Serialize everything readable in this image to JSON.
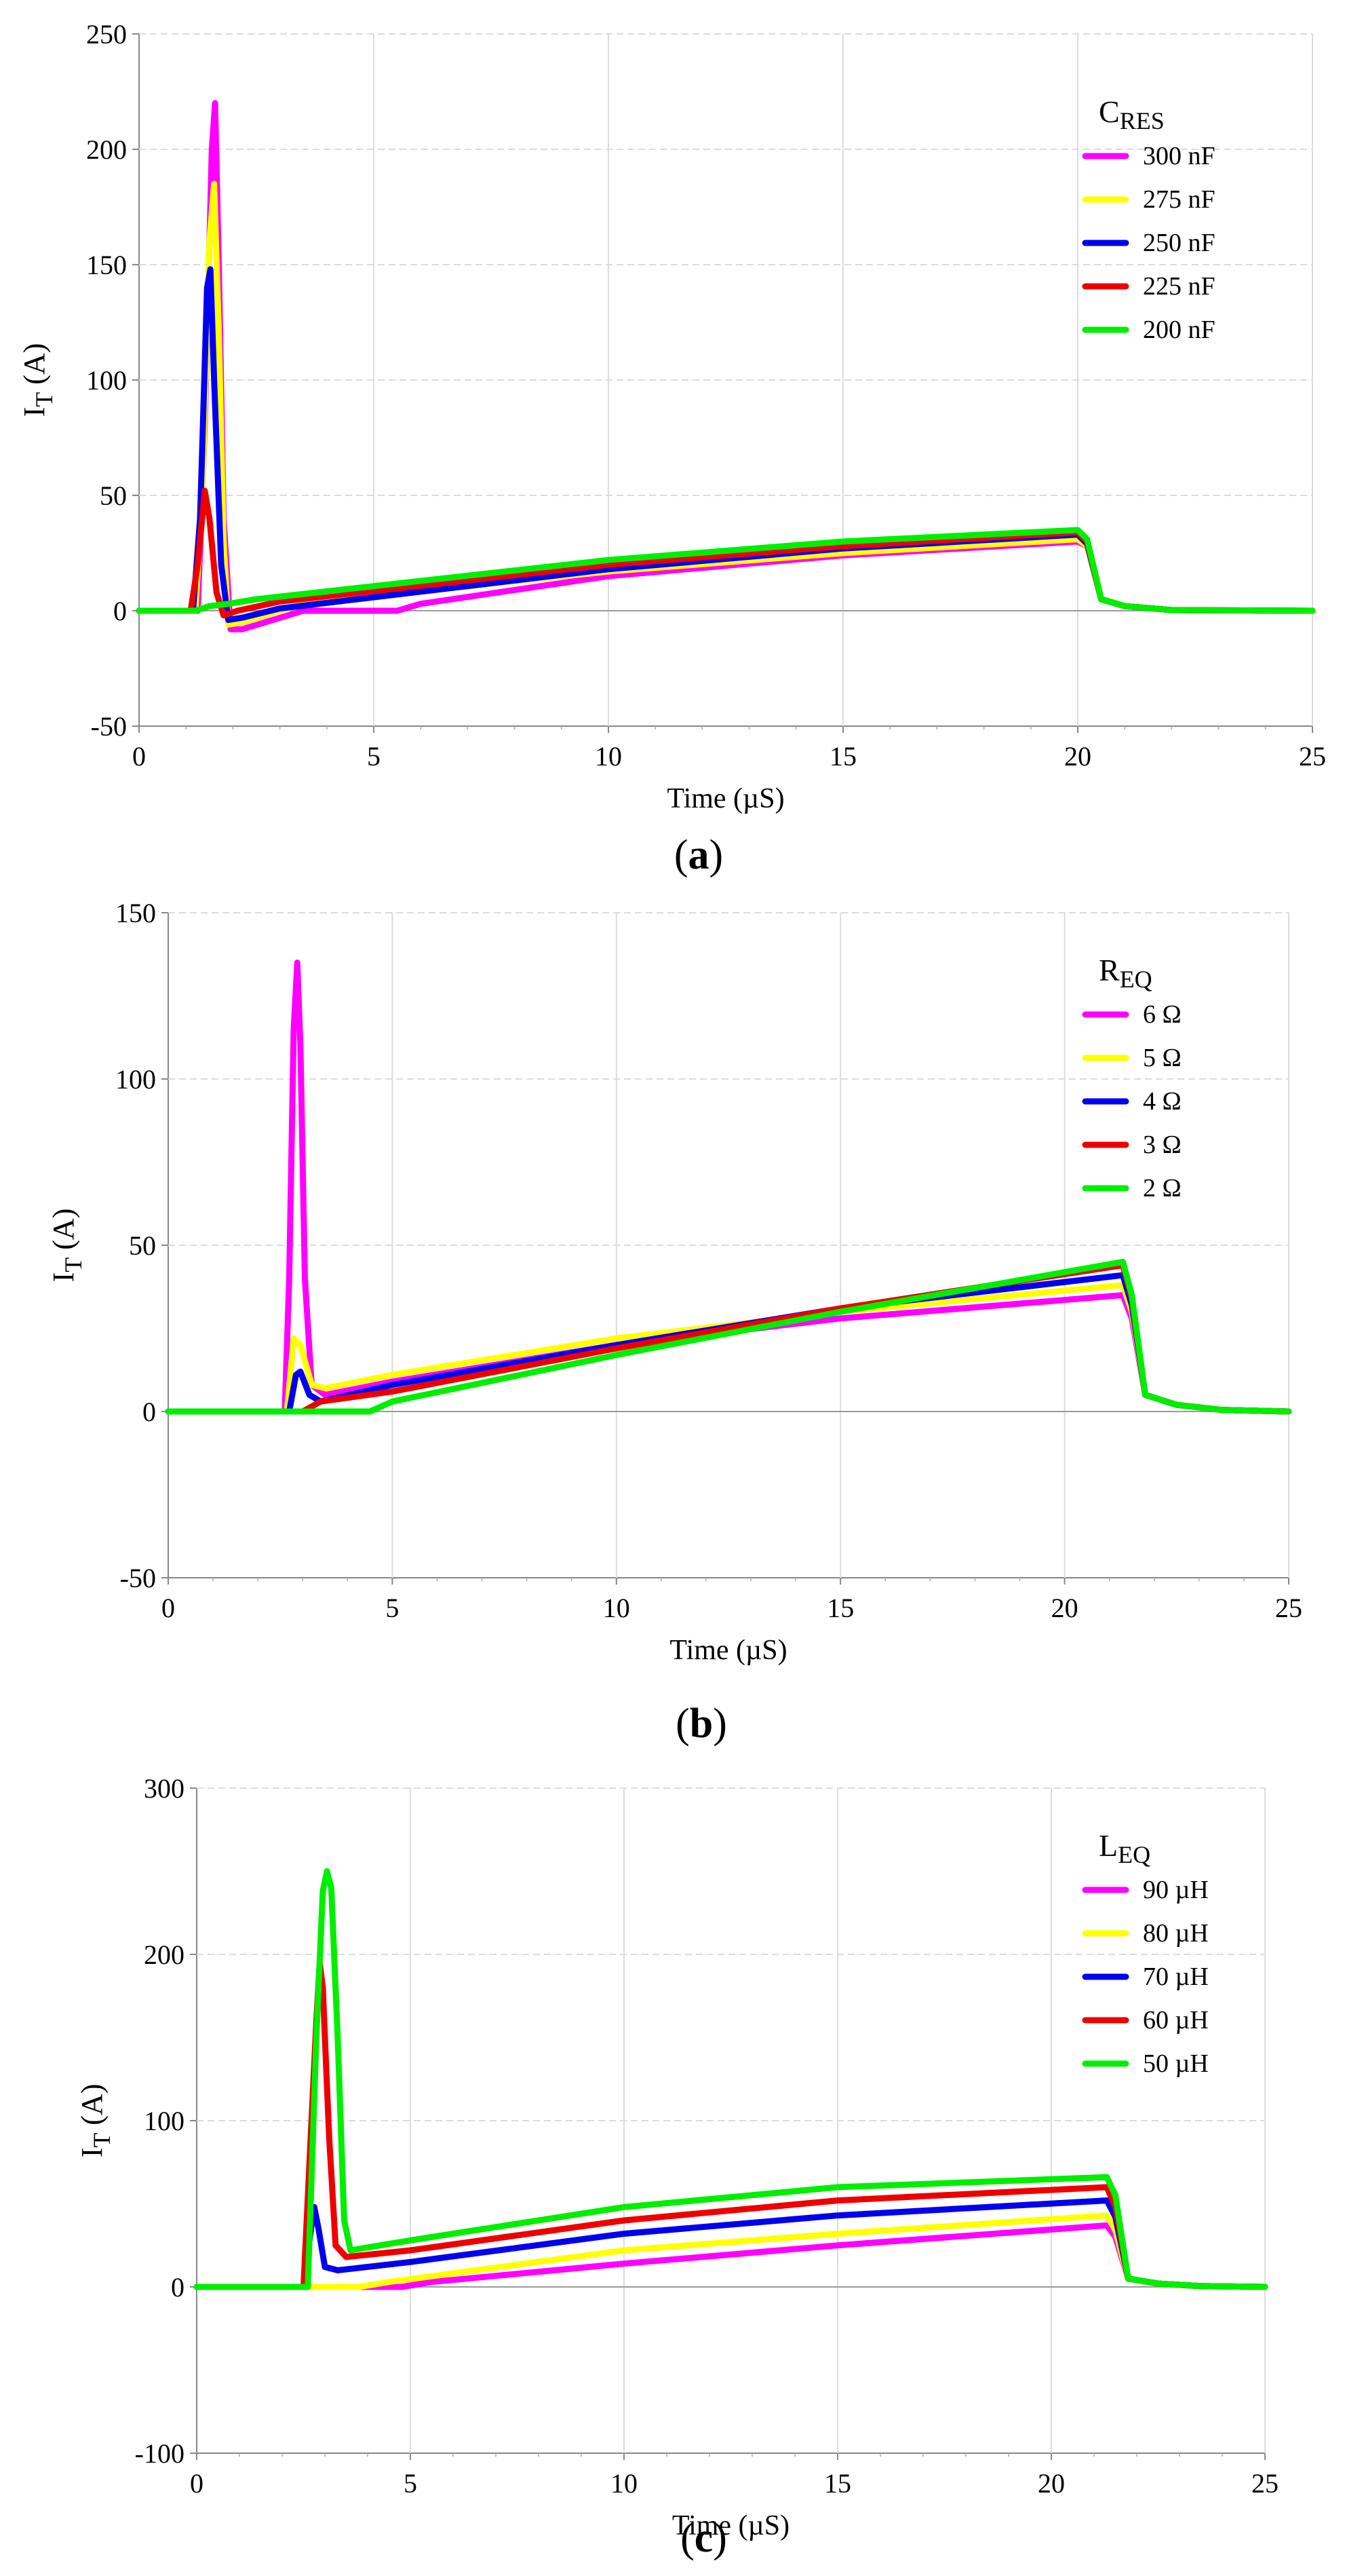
{
  "chart_data": [
    {
      "type": "line",
      "panel_label": "(a)",
      "panel_letter": "a",
      "xlabel": "Time (µS)",
      "ylabel_main": "I",
      "ylabel_sub": "T",
      "ylabel_tail": " (A)",
      "xlim": [
        0,
        25
      ],
      "ylim": [
        -50,
        250
      ],
      "xticks": [
        0,
        5,
        10,
        15,
        20,
        25
      ],
      "yticks": [
        -50,
        0,
        50,
        100,
        150,
        200,
        250
      ],
      "grid": true,
      "legend_title_main": "C",
      "legend_title_sub": "RES",
      "legend_position": "top-right",
      "series": [
        {
          "name": "300 nF",
          "color": "#ff00ff",
          "points": [
            [
              0,
              0
            ],
            [
              1.25,
              0
            ],
            [
              1.4,
              80
            ],
            [
              1.55,
              200
            ],
            [
              1.62,
              220
            ],
            [
              1.7,
              150
            ],
            [
              1.8,
              40
            ],
            [
              1.95,
              -8
            ],
            [
              2.2,
              -8
            ],
            [
              3.5,
              0
            ],
            [
              5.5,
              0
            ],
            [
              6,
              3
            ],
            [
              10,
              15
            ],
            [
              15,
              24
            ],
            [
              20,
              30
            ],
            [
              20.2,
              28
            ],
            [
              20.5,
              5
            ],
            [
              21,
              2
            ],
            [
              22,
              0.3
            ],
            [
              25,
              0
            ]
          ]
        },
        {
          "name": "275 nF",
          "color": "#ffff00",
          "points": [
            [
              0,
              0
            ],
            [
              1.2,
              0
            ],
            [
              1.35,
              50
            ],
            [
              1.5,
              160
            ],
            [
              1.6,
              185
            ],
            [
              1.7,
              120
            ],
            [
              1.8,
              30
            ],
            [
              1.9,
              -6
            ],
            [
              2.2,
              -5
            ],
            [
              3.5,
              3
            ],
            [
              10,
              17
            ],
            [
              15,
              25
            ],
            [
              20,
              31
            ],
            [
              20.2,
              28
            ],
            [
              20.5,
              5
            ],
            [
              21,
              2
            ],
            [
              22,
              0.3
            ],
            [
              25,
              0
            ]
          ]
        },
        {
          "name": "250 nF",
          "color": "#0000ee",
          "points": [
            [
              0,
              0
            ],
            [
              1.15,
              0
            ],
            [
              1.3,
              40
            ],
            [
              1.45,
              140
            ],
            [
              1.52,
              148
            ],
            [
              1.6,
              100
            ],
            [
              1.75,
              20
            ],
            [
              1.9,
              -4
            ],
            [
              2.2,
              -3
            ],
            [
              3,
              1
            ],
            [
              10,
              18
            ],
            [
              15,
              27
            ],
            [
              20,
              33
            ],
            [
              20.2,
              29
            ],
            [
              20.5,
              5
            ],
            [
              21,
              2
            ],
            [
              22,
              0.3
            ],
            [
              25,
              0
            ]
          ]
        },
        {
          "name": "225 nF",
          "color": "#ee0000",
          "points": [
            [
              0,
              0
            ],
            [
              1.1,
              0
            ],
            [
              1.25,
              20
            ],
            [
              1.4,
              52
            ],
            [
              1.5,
              40
            ],
            [
              1.65,
              8
            ],
            [
              1.8,
              -2
            ],
            [
              2.1,
              0
            ],
            [
              3,
              4
            ],
            [
              10,
              20
            ],
            [
              15,
              28
            ],
            [
              20,
              34
            ],
            [
              20.2,
              30
            ],
            [
              20.5,
              5
            ],
            [
              21,
              2
            ],
            [
              22,
              0.3
            ],
            [
              25,
              0
            ]
          ]
        },
        {
          "name": "200 nF",
          "color": "#00ee00",
          "points": [
            [
              0,
              0
            ],
            [
              1.2,
              0
            ],
            [
              1.5,
              2
            ],
            [
              1.9,
              3
            ],
            [
              2.5,
              5
            ],
            [
              10,
              22
            ],
            [
              15,
              30
            ],
            [
              20,
              35
            ],
            [
              20.2,
              31
            ],
            [
              20.5,
              5
            ],
            [
              21,
              2
            ],
            [
              22,
              0.3
            ],
            [
              25,
              0
            ]
          ]
        }
      ]
    },
    {
      "type": "line",
      "panel_label": "(b)",
      "panel_letter": "b",
      "xlabel": "Time (µS)",
      "ylabel_main": "I",
      "ylabel_sub": "T",
      "ylabel_tail": " (A)",
      "xlim": [
        0,
        25
      ],
      "ylim": [
        -50,
        150
      ],
      "xticks": [
        0,
        5,
        10,
        15,
        20,
        25
      ],
      "yticks": [
        -50,
        0,
        50,
        100,
        150
      ],
      "grid": true,
      "legend_title_main": "R",
      "legend_title_sub": "EQ",
      "legend_position": "top-right",
      "series": [
        {
          "name": "6 Ω",
          "color": "#ff00ff",
          "points": [
            [
              0,
              0
            ],
            [
              2.6,
              0
            ],
            [
              2.7,
              40
            ],
            [
              2.8,
              115
            ],
            [
              2.88,
              135
            ],
            [
              2.95,
              110
            ],
            [
              3.05,
              40
            ],
            [
              3.2,
              8
            ],
            [
              3.5,
              5
            ],
            [
              5,
              9
            ],
            [
              10,
              20
            ],
            [
              15,
              28
            ],
            [
              21.3,
              35
            ],
            [
              21.5,
              28
            ],
            [
              21.8,
              5
            ],
            [
              22.5,
              2
            ],
            [
              23.5,
              0.5
            ],
            [
              25,
              0
            ]
          ]
        },
        {
          "name": "5 Ω",
          "color": "#ffff00",
          "points": [
            [
              0,
              0
            ],
            [
              2.65,
              0
            ],
            [
              2.8,
              22
            ],
            [
              2.95,
              20
            ],
            [
              3.2,
              8
            ],
            [
              3.5,
              7
            ],
            [
              5,
              11
            ],
            [
              10,
              22
            ],
            [
              15,
              30
            ],
            [
              21.3,
              38
            ],
            [
              21.5,
              30
            ],
            [
              21.8,
              5
            ],
            [
              22.5,
              2
            ],
            [
              23.5,
              0.5
            ],
            [
              25,
              0
            ]
          ]
        },
        {
          "name": "4 Ω",
          "color": "#0000ee",
          "points": [
            [
              0,
              0
            ],
            [
              2.7,
              0
            ],
            [
              2.85,
              11
            ],
            [
              2.95,
              12
            ],
            [
              3.15,
              5
            ],
            [
              3.4,
              3
            ],
            [
              5,
              8
            ],
            [
              10,
              20
            ],
            [
              15,
              31
            ],
            [
              21.3,
              41
            ],
            [
              21.5,
              32
            ],
            [
              21.8,
              5
            ],
            [
              22.5,
              2
            ],
            [
              23.5,
              0.5
            ],
            [
              25,
              0
            ]
          ]
        },
        {
          "name": "3 Ω",
          "color": "#ee0000",
          "points": [
            [
              0,
              0
            ],
            [
              3,
              0
            ],
            [
              3.4,
              3
            ],
            [
              5,
              6
            ],
            [
              10,
              19
            ],
            [
              15,
              31
            ],
            [
              21.3,
              44
            ],
            [
              21.5,
              34
            ],
            [
              21.8,
              5
            ],
            [
              22.5,
              2
            ],
            [
              23.5,
              0.5
            ],
            [
              25,
              0
            ]
          ]
        },
        {
          "name": "2 Ω",
          "color": "#00ee00",
          "points": [
            [
              0,
              0
            ],
            [
              4.5,
              0
            ],
            [
              5,
              3
            ],
            [
              10,
              17
            ],
            [
              15,
              30
            ],
            [
              21.3,
              45
            ],
            [
              21.5,
              35
            ],
            [
              21.8,
              5
            ],
            [
              22.5,
              2
            ],
            [
              23.5,
              0.5
            ],
            [
              25,
              0
            ]
          ]
        }
      ]
    },
    {
      "type": "line",
      "panel_label": "(c)",
      "panel_letter": "c",
      "xlabel": "Time (µS)",
      "ylabel_main": "I",
      "ylabel_sub": "T",
      "ylabel_tail": " (A)",
      "xlim": [
        0,
        25
      ],
      "ylim": [
        -100,
        300
      ],
      "xticks": [
        0,
        5,
        10,
        15,
        20,
        25
      ],
      "yticks": [
        -100,
        0,
        100,
        200,
        300
      ],
      "grid": true,
      "legend_title_main": "L",
      "legend_title_sub": "EQ",
      "legend_position": "top-right",
      "series": [
        {
          "name": "90 µH",
          "color": "#ff00ff",
          "points": [
            [
              0,
              0
            ],
            [
              4.8,
              0
            ],
            [
              5.5,
              3
            ],
            [
              10,
              14
            ],
            [
              15,
              25
            ],
            [
              21.3,
              37
            ],
            [
              21.5,
              30
            ],
            [
              21.8,
              5
            ],
            [
              22.5,
              2
            ],
            [
              23.5,
              0.5
            ],
            [
              25,
              0
            ]
          ]
        },
        {
          "name": "80 µH",
          "color": "#ffff00",
          "points": [
            [
              0,
              0
            ],
            [
              3.8,
              0
            ],
            [
              4.5,
              3
            ],
            [
              10,
              22
            ],
            [
              15,
              32
            ],
            [
              21.3,
              43
            ],
            [
              21.5,
              34
            ],
            [
              21.8,
              5
            ],
            [
              22.5,
              2
            ],
            [
              23.5,
              0.5
            ],
            [
              25,
              0
            ]
          ]
        },
        {
          "name": "70 µH",
          "color": "#0000ee",
          "points": [
            [
              0,
              0
            ],
            [
              2.5,
              0
            ],
            [
              2.65,
              30
            ],
            [
              2.75,
              48
            ],
            [
              2.85,
              35
            ],
            [
              3.0,
              12
            ],
            [
              3.3,
              10
            ],
            [
              5,
              15
            ],
            [
              10,
              32
            ],
            [
              15,
              43
            ],
            [
              21.3,
              52
            ],
            [
              21.5,
              42
            ],
            [
              21.8,
              5
            ],
            [
              22.5,
              2
            ],
            [
              23.5,
              0.5
            ],
            [
              25,
              0
            ]
          ]
        },
        {
          "name": "60 µH",
          "color": "#ee0000",
          "points": [
            [
              0,
              0
            ],
            [
              2.5,
              0
            ],
            [
              2.65,
              80
            ],
            [
              2.8,
              160
            ],
            [
              2.88,
              195
            ],
            [
              2.95,
              180
            ],
            [
              3.1,
              90
            ],
            [
              3.25,
              25
            ],
            [
              3.5,
              18
            ],
            [
              5,
              22
            ],
            [
              10,
              40
            ],
            [
              15,
              52
            ],
            [
              21.3,
              60
            ],
            [
              21.5,
              48
            ],
            [
              21.8,
              5
            ],
            [
              22.5,
              2
            ],
            [
              23.5,
              0.5
            ],
            [
              25,
              0
            ]
          ]
        },
        {
          "name": "50 µH",
          "color": "#00ee00",
          "points": [
            [
              0,
              0
            ],
            [
              2.6,
              0
            ],
            [
              2.8,
              150
            ],
            [
              2.95,
              238
            ],
            [
              3.05,
              250
            ],
            [
              3.15,
              240
            ],
            [
              3.3,
              150
            ],
            [
              3.45,
              40
            ],
            [
              3.6,
              22
            ],
            [
              5,
              28
            ],
            [
              10,
              48
            ],
            [
              15,
              60
            ],
            [
              21.3,
              66
            ],
            [
              21.5,
              55
            ],
            [
              21.8,
              5
            ],
            [
              22.5,
              2
            ],
            [
              23.5,
              0.5
            ],
            [
              25,
              0
            ]
          ]
        }
      ]
    }
  ]
}
